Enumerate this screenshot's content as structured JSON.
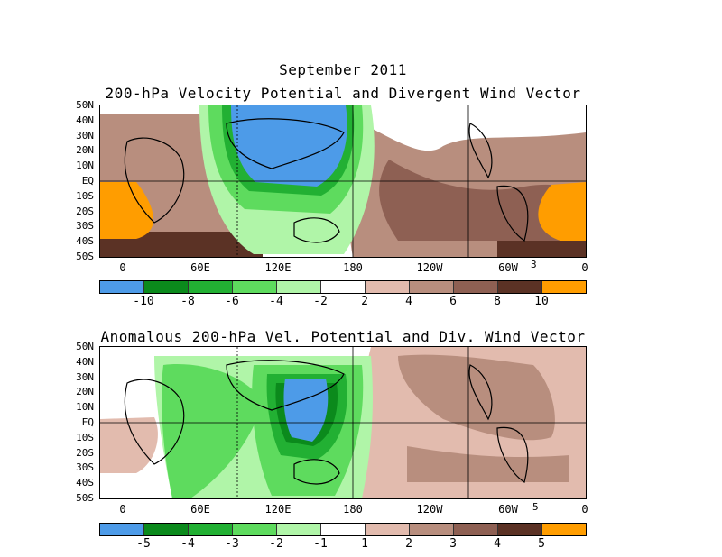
{
  "header": {
    "title": "September 2011",
    "panel1_title": "200-hPa Velocity Potential and Divergent Wind Vector",
    "panel2_title": "Anomalous 200-hPa Vel. Potential and Div. Wind Vector"
  },
  "axes": {
    "lat_labels": [
      "50N",
      "40N",
      "30N",
      "20N",
      "10N",
      "EQ",
      "10S",
      "20S",
      "30S",
      "40S",
      "50S"
    ],
    "lon_labels": [
      "0",
      "60E",
      "120E",
      "180",
      "120W",
      "60W",
      "0"
    ]
  },
  "panel1": {
    "vector_scale": "3",
    "colorbar_labels": [
      "-10",
      "-8",
      "-6",
      "-4",
      "-2",
      "2",
      "4",
      "6",
      "8",
      "10"
    ],
    "colorbar_colors": [
      "#4d9be8",
      "#0b8a1c",
      "#22b033",
      "#5edb5e",
      "#b0f5a8",
      "#ffffff",
      "#e2bbae",
      "#b88e7e",
      "#8e6053",
      "#5b3225",
      "#ff9d00"
    ]
  },
  "panel2": {
    "vector_scale": "5",
    "colorbar_labels": [
      "-5",
      "-4",
      "-3",
      "-2",
      "-1",
      "1",
      "2",
      "3",
      "4",
      "5"
    ],
    "colorbar_colors": [
      "#4d9be8",
      "#0b8a1c",
      "#22b033",
      "#5edb5e",
      "#b0f5a8",
      "#ffffff",
      "#e2bbae",
      "#b88e7e",
      "#8e6053",
      "#5b3225",
      "#ff9d00"
    ]
  }
}
